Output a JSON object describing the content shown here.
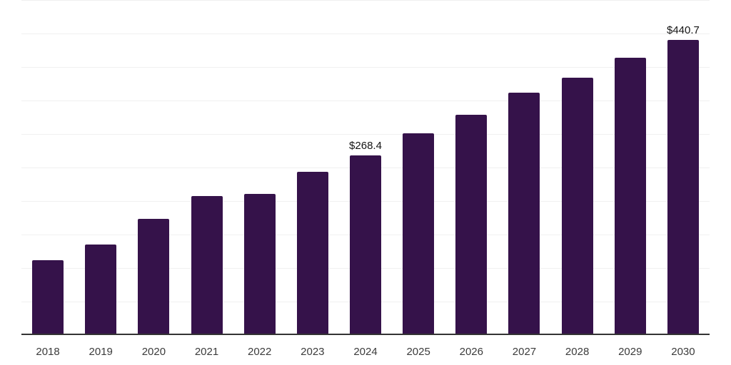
{
  "chart_data": {
    "type": "bar",
    "categories": [
      "2018",
      "2019",
      "2020",
      "2021",
      "2022",
      "2023",
      "2024",
      "2025",
      "2026",
      "2027",
      "2028",
      "2029",
      "2030"
    ],
    "values": [
      111.9,
      135.1,
      173.4,
      207.6,
      210.3,
      244.1,
      268.4,
      301.4,
      328.7,
      361.4,
      384.5,
      413.6,
      440.7
    ],
    "data_labels": [
      "",
      "",
      "",
      "",
      "",
      "",
      "$268.4",
      "",
      "",
      "",
      "",
      "",
      "$440.7"
    ],
    "title": "",
    "xlabel": "",
    "ylabel": "",
    "ylim": [
      0,
      500
    ],
    "gridline_step": 50,
    "grid": true,
    "legend": false,
    "y_tick_labels_visible": false,
    "bar_color": "#35124a",
    "gridline_color": "#f0f0f0",
    "axis_line_color": "#333333",
    "tick_label_color": "#3b3b3b",
    "data_label_color": "#141414",
    "background_color": "#ffffff"
  }
}
